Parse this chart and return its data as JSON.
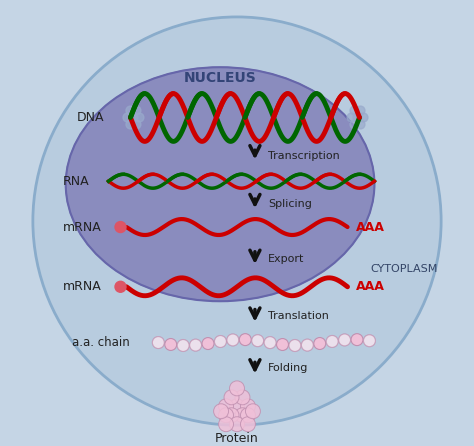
{
  "bg_color": "#c5d5e5",
  "cell_color": "#b8ccdf",
  "cell_border_color": "#8aaccb",
  "nucleus_color": "#8585bb",
  "nucleus_border_color": "#6666aa",
  "nucleus_label": "NUCLEUS",
  "cytoplasm_label": "CYTOPLASM",
  "dna_label": "DNA",
  "rna_label": "RNA",
  "mrna_label": "mRNA",
  "mrna_cyto_label": "mRNA",
  "aa_label": "a.a. chain",
  "protein_label": "Protein",
  "step_labels": [
    "Transcription",
    "Splicing",
    "Export",
    "Translation",
    "Folding"
  ],
  "dna_red": "#cc0000",
  "dna_green": "#006600",
  "rna_red": "#cc0000",
  "rna_green": "#006600",
  "mrna_red": "#cc0000",
  "aaa_color": "#cc0000",
  "arrow_color": "#111111",
  "aa_bead_fill": "#f0c0d8",
  "aa_bead_edge": "#c090b0",
  "protein_fill": "#f0c0d8",
  "protein_edge": "#c090b0",
  "label_color": "#222222",
  "nucleus_label_color": "#334477",
  "cytoplasm_label_color": "#334466",
  "cap_bead_color": "#dd5566",
  "dna_end_color": "#99aacc"
}
